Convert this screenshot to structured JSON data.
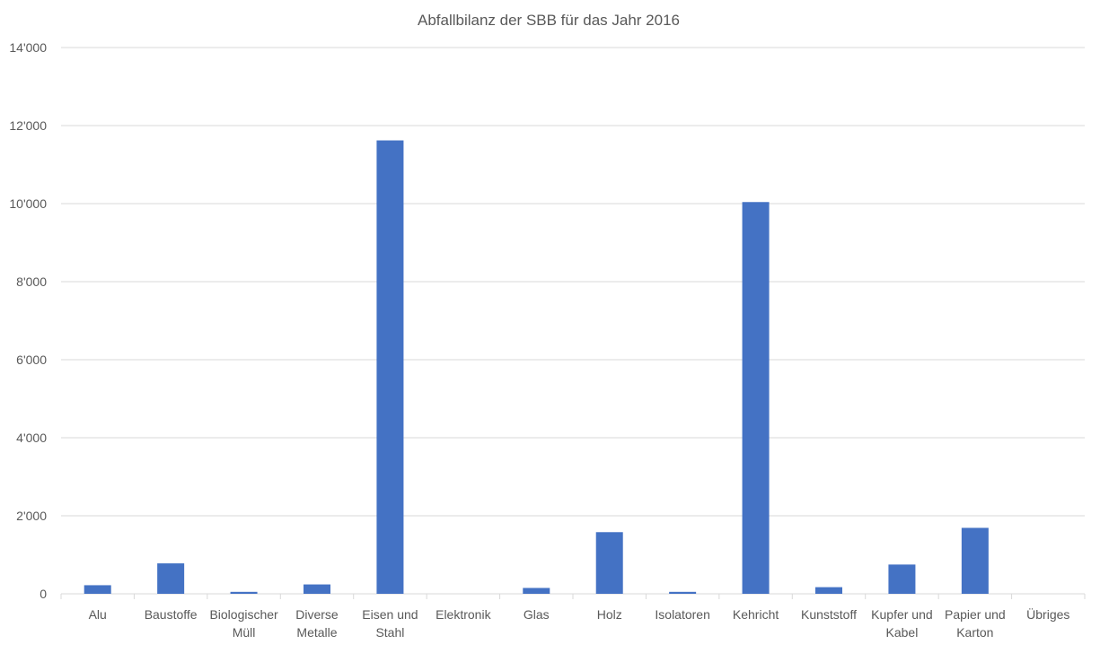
{
  "chart_data": {
    "type": "bar",
    "title": "Abfallbilanz der SBB für das Jahr 2016",
    "xlabel": "",
    "ylabel": "",
    "ylim": [
      0,
      14000
    ],
    "yticks": [
      "0",
      "2'000",
      "4'000",
      "6'000",
      "8'000",
      "10'000",
      "12'000",
      "14'000"
    ],
    "grid": true,
    "bar_color": "#4472c4",
    "categories": [
      [
        "Alu"
      ],
      [
        "Baustoffe"
      ],
      [
        "Biologischer",
        "Müll"
      ],
      [
        "Diverse",
        "Metalle"
      ],
      [
        "Eisen und",
        "Stahl"
      ],
      [
        "Elektronik"
      ],
      [
        "Glas"
      ],
      [
        "Holz"
      ],
      [
        "Isolatoren"
      ],
      [
        "Kehricht"
      ],
      [
        "Kunststoff"
      ],
      [
        "Kupfer und",
        "Kabel"
      ],
      [
        "Papier und",
        "Karton"
      ],
      [
        "Übriges"
      ]
    ],
    "values": [
      220,
      780,
      50,
      240,
      11620,
      0,
      150,
      1580,
      50,
      10040,
      170,
      750,
      1690,
      0
    ]
  }
}
